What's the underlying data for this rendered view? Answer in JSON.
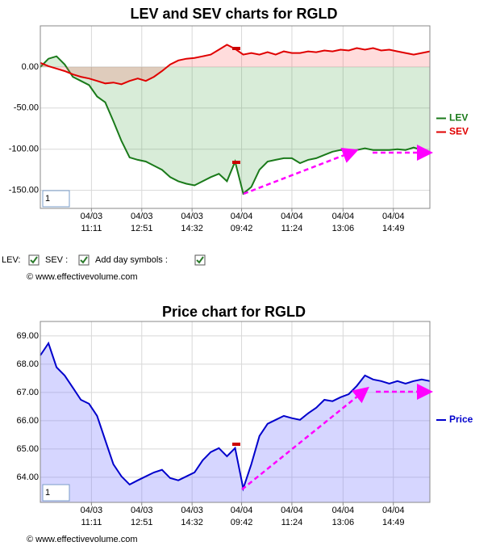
{
  "chart_data": [
    {
      "type": "line",
      "title": "LEV and SEV charts for RGLD",
      "legend": "right",
      "grid": true,
      "box_text": "1",
      "xlim": [
        0,
        48
      ],
      "xticks": [
        {
          "value": 6.3,
          "label": [
            "04/03",
            "11:11"
          ]
        },
        {
          "value": 12.5,
          "label": [
            "04/03",
            "12:51"
          ]
        },
        {
          "value": 18.7,
          "label": [
            "04/03",
            "14:32"
          ]
        },
        {
          "value": 24.8,
          "label": [
            "04/04",
            "09:42"
          ]
        },
        {
          "value": 31,
          "label": [
            "04/04",
            "11:24"
          ]
        },
        {
          "value": 37.3,
          "label": [
            "04/04",
            "13:06"
          ]
        },
        {
          "value": 43.5,
          "label": [
            "04/04",
            "14:49"
          ]
        }
      ],
      "ylim": [
        -172,
        50
      ],
      "yticks": [
        {
          "value": 0,
          "label": "0.00"
        },
        {
          "value": -50,
          "label": "-50.00"
        },
        {
          "value": -100,
          "label": "-100.00"
        },
        {
          "value": -150,
          "label": "-150.00"
        }
      ],
      "series": [
        {
          "name": "LEV",
          "color": "#1a7a1a",
          "fill": "rgba(60,160,60,0.2)",
          "values": [
            0,
            10,
            13,
            3,
            -12,
            -17,
            -22,
            -36,
            -43,
            -66,
            -90,
            -110,
            -113,
            -115,
            -120,
            -125,
            -134,
            -139,
            -142,
            -144,
            -139,
            -134,
            -130,
            -139,
            -115,
            -154,
            -146,
            -125,
            -115,
            -113,
            -111,
            -111,
            -117,
            -113,
            -111,
            -107,
            -103,
            -101,
            -102,
            -101,
            -99,
            -101,
            -101,
            -101,
            -100,
            -101,
            -98,
            -101,
            -105
          ]
        },
        {
          "name": "SEV",
          "color": "#e00000",
          "fill": "rgba(255,80,80,0.2)",
          "values": [
            5,
            1,
            -2,
            -5,
            -9,
            -12,
            -14,
            -17,
            -20,
            -19,
            -21,
            -17,
            -14,
            -17,
            -12,
            -5,
            3,
            8,
            10,
            11,
            13,
            15,
            21,
            27,
            22,
            15,
            17,
            15,
            18,
            15,
            19,
            17,
            17,
            19,
            18,
            20,
            19,
            21,
            20,
            23,
            21,
            23,
            20,
            21,
            19,
            17,
            15,
            17,
            19
          ]
        }
      ]
    },
    {
      "type": "line",
      "title": "Price chart for RGLD",
      "legend": "right",
      "grid": true,
      "box_text": "1",
      "xlim": [
        0,
        48
      ],
      "xticks": [
        {
          "value": 6.3,
          "label": [
            "04/03",
            "11:11"
          ]
        },
        {
          "value": 12.5,
          "label": [
            "04/03",
            "12:51"
          ]
        },
        {
          "value": 18.7,
          "label": [
            "04/03",
            "14:32"
          ]
        },
        {
          "value": 24.8,
          "label": [
            "04/04",
            "09:42"
          ]
        },
        {
          "value": 31,
          "label": [
            "04/04",
            "11:24"
          ]
        },
        {
          "value": 37.3,
          "label": [
            "04/04",
            "13:06"
          ]
        },
        {
          "value": 43.5,
          "label": [
            "04/04",
            "14:49"
          ]
        }
      ],
      "ylim": [
        63.11,
        69.51
      ],
      "yticks": [
        {
          "value": 69,
          "label": "69.00"
        },
        {
          "value": 68,
          "label": "68.00"
        },
        {
          "value": 67,
          "label": "67.00"
        },
        {
          "value": 66,
          "label": "66.00"
        },
        {
          "value": 65,
          "label": "65.00"
        },
        {
          "value": 64,
          "label": "64.00"
        }
      ],
      "series": [
        {
          "name": "Price",
          "color": "#0000cc",
          "fill": "rgba(120,120,255,0.3)",
          "values": [
            68.31,
            68.74,
            67.89,
            67.6,
            67.17,
            66.74,
            66.6,
            66.17,
            65.31,
            64.46,
            64.03,
            63.74,
            63.89,
            64.03,
            64.17,
            64.26,
            63.97,
            63.89,
            64.03,
            64.17,
            64.6,
            64.89,
            65.03,
            64.74,
            65.03,
            63.6,
            64.46,
            65.46,
            65.89,
            66.03,
            66.17,
            66.09,
            66.03,
            66.26,
            66.46,
            66.74,
            66.69,
            66.83,
            66.94,
            67.23,
            67.6,
            67.46,
            67.4,
            67.31,
            67.4,
            67.31,
            67.4,
            67.46,
            67.4
          ]
        }
      ]
    }
  ],
  "controls": {
    "lev": "LEV:",
    "sev": "SEV :",
    "day_symbols": "Add day symbols :"
  },
  "copyright": "© www.effectivevolume.com"
}
